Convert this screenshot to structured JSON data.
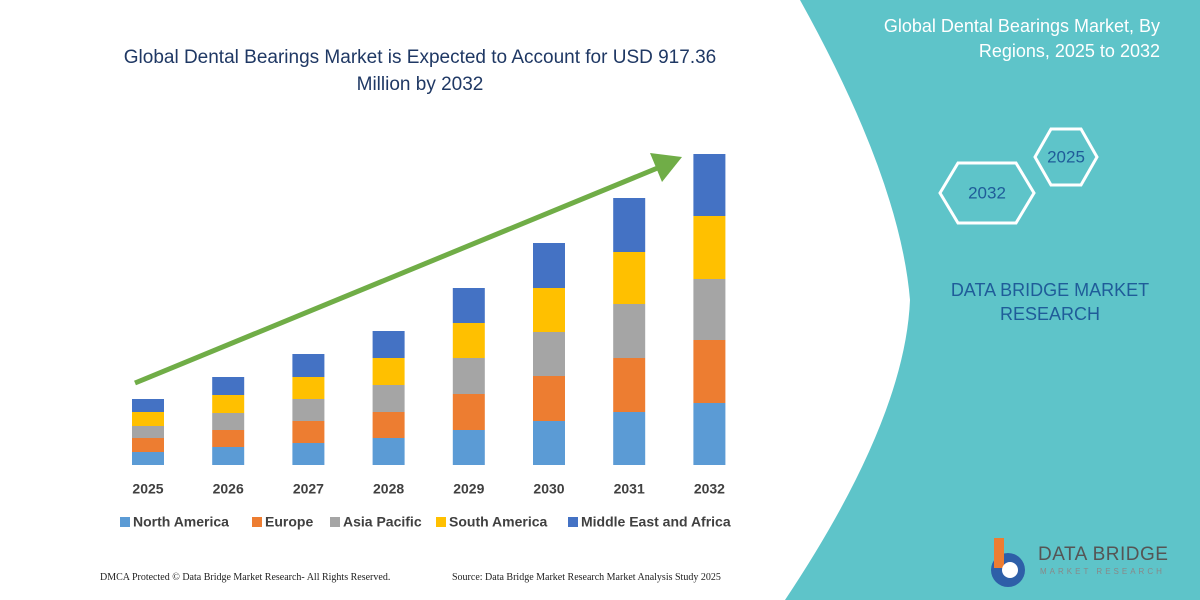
{
  "chart_data": {
    "type": "stacked-bar",
    "title": "Global Dental Bearings Market is Expected to Account for USD 917.36 Million by 2032",
    "categories": [
      "2025",
      "2026",
      "2027",
      "2028",
      "2029",
      "2030",
      "2031",
      "2032"
    ],
    "series": [
      {
        "name": "North America",
        "color": "#5b9bd5",
        "values": [
          13,
          18,
          22,
          27,
          35,
          44,
          53,
          62
        ]
      },
      {
        "name": "Europe",
        "color": "#ed7d31",
        "values": [
          14,
          17,
          22,
          26,
          36,
          45,
          54,
          63
        ]
      },
      {
        "name": "Asia Pacific",
        "color": "#a5a5a5",
        "values": [
          12,
          17,
          22,
          27,
          36,
          44,
          54,
          61
        ]
      },
      {
        "name": "South America",
        "color": "#ffc000",
        "values": [
          14,
          18,
          22,
          27,
          35,
          44,
          52,
          63
        ]
      },
      {
        "name": "Middle East and Africa",
        "color": "#4472c4",
        "values": [
          13,
          18,
          23,
          27,
          35,
          45,
          54,
          62
        ]
      }
    ]
  },
  "panel": {
    "title": "Global Dental Bearings Market, By Regions, 2025 to 2032",
    "hex_start": "2025",
    "hex_end": "2032",
    "brand": "DATA BRIDGE MARKET RESEARCH"
  },
  "logo": {
    "name": "DATA BRIDGE",
    "tagline": "MARKET RESEARCH"
  },
  "footer": {
    "left": "DMCA Protected © Data Bridge Market Research- All Rights Reserved.",
    "right": "Source: Data Bridge Market Research Market Analysis Study 2025"
  }
}
